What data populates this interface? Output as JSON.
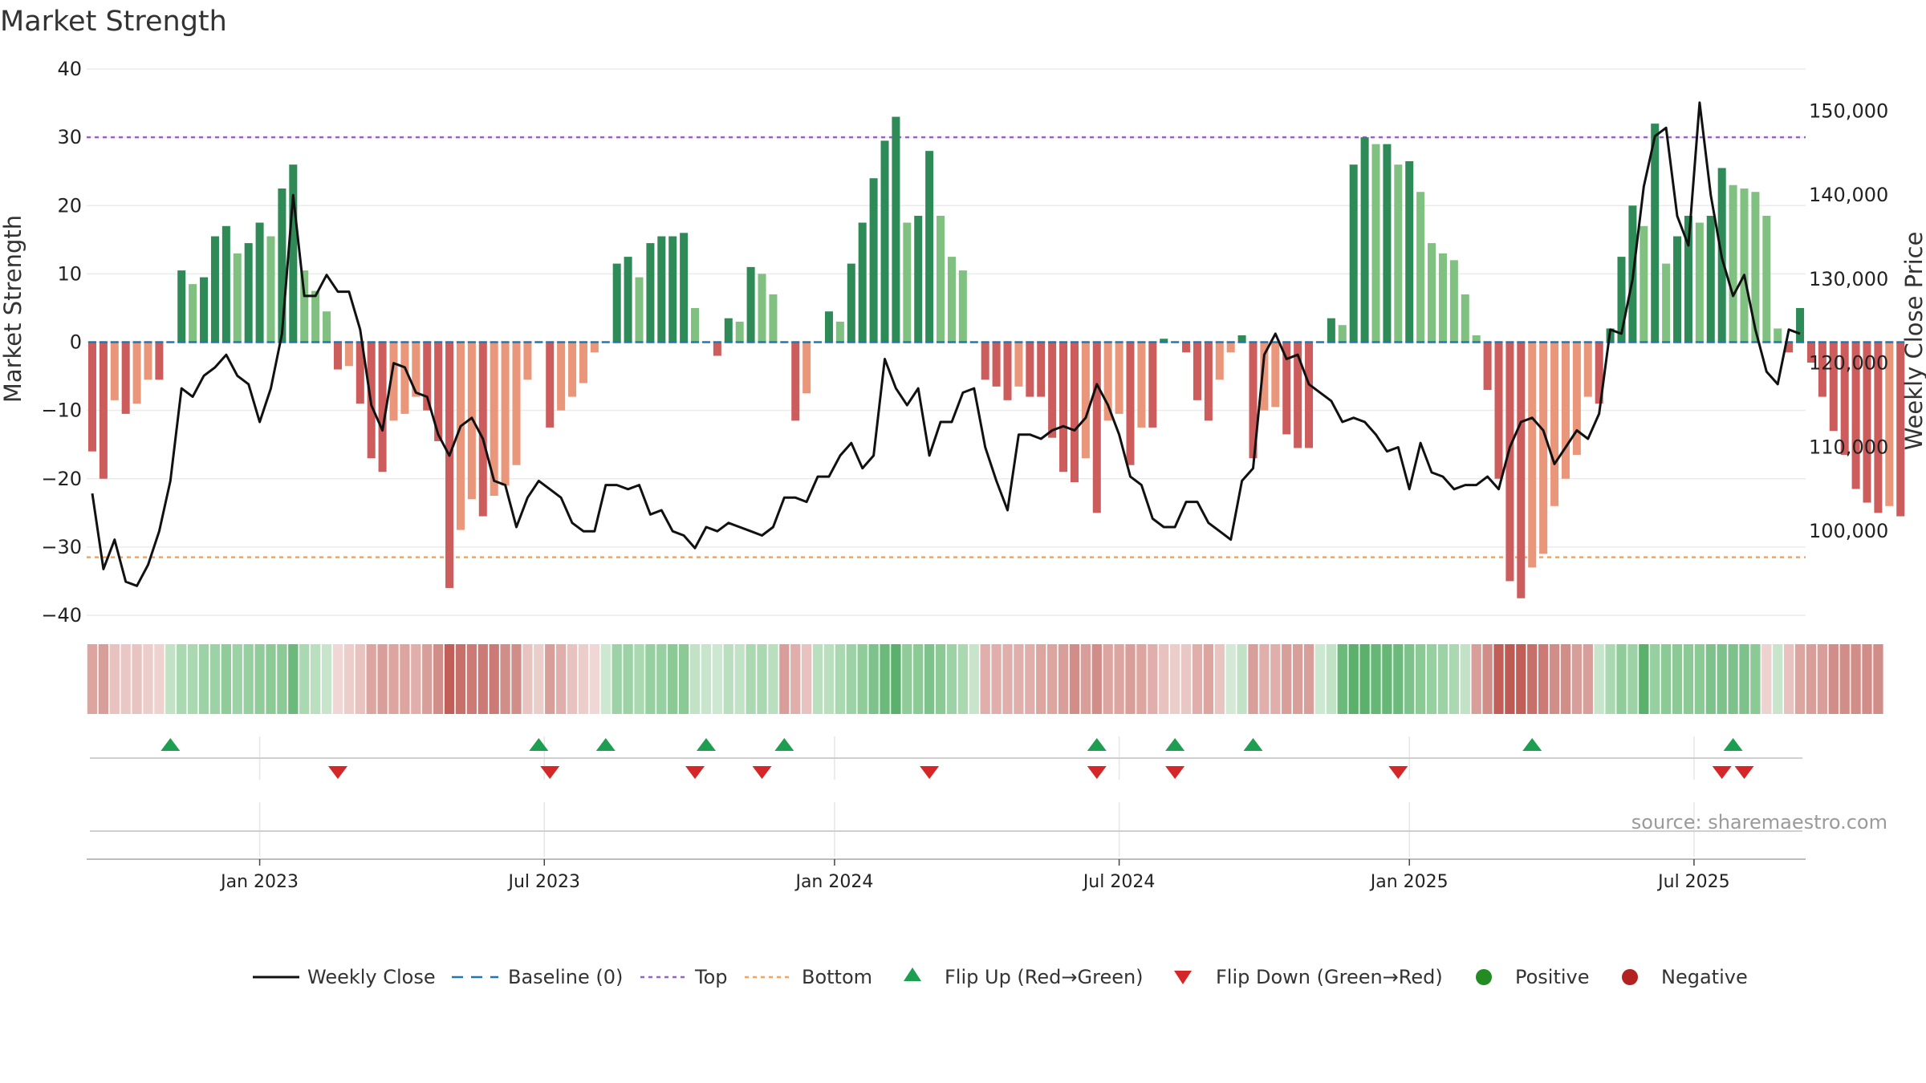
{
  "chart_data": {
    "type": "bar",
    "title": "Market Strength",
    "ylabel": "Market Strength",
    "y2label": "Weekly Close Price",
    "ylim": [
      -40,
      40
    ],
    "yticks": [
      40,
      30,
      20,
      10,
      0,
      -10,
      -20,
      -30,
      -40
    ],
    "ytick_labels": [
      "40",
      "30",
      "20",
      "10",
      "0",
      "−10",
      "−20",
      "−30",
      "−40"
    ],
    "y2lim": [
      90000,
      155000
    ],
    "y2ticks": [
      150000,
      140000,
      130000,
      120000,
      110000,
      100000
    ],
    "y2tick_labels": [
      "150,000",
      "140,000",
      "130,000",
      "120,000",
      "110,000",
      "100,000"
    ],
    "top_level": 30,
    "bottom_level": -31.5,
    "x_start_week": 0,
    "weeks": 154,
    "xticks": [
      {
        "label": "Jan 2023",
        "week": 15
      },
      {
        "label": "Jul 2023",
        "week": 40.5
      },
      {
        "label": "Jan 2024",
        "week": 66.5
      },
      {
        "label": "Jul 2024",
        "week": 92
      },
      {
        "label": "Jan 2025",
        "week": 118
      },
      {
        "label": "Jul 2025",
        "week": 143.5
      }
    ],
    "strength": [
      -16,
      -20,
      -8.5,
      -10.5,
      -9,
      -5.5,
      -5.5,
      0,
      10.5,
      8.5,
      9.5,
      15.5,
      17,
      13,
      14.5,
      17.5,
      15.5,
      22.5,
      26,
      10.5,
      7.5,
      4.5,
      -4,
      -3.5,
      -9,
      -17,
      -19,
      -11.5,
      -10.5,
      -8,
      -10,
      -14.5,
      -36,
      -27.5,
      -23,
      -25.5,
      -22.5,
      -21,
      -18,
      -5.5,
      0,
      -12.5,
      -10,
      -8,
      -6,
      -1.5,
      0,
      11.5,
      12.5,
      9.5,
      14.5,
      15.5,
      15.5,
      16,
      5,
      0,
      -2,
      3.5,
      3,
      11,
      10,
      7,
      0,
      -11.5,
      -7.5,
      0,
      4.5,
      3,
      11.5,
      17.5,
      24,
      29.5,
      33,
      17.5,
      18.5,
      28,
      18.5,
      12.5,
      10.5,
      0,
      -5.5,
      -6.5,
      -8.5,
      -6.5,
      -8,
      -8,
      -14,
      -19,
      -20.5,
      -17,
      -25,
      -11.5,
      -10.5,
      -18,
      -12.5,
      -12.5,
      0.5,
      0,
      -1.5,
      -8.5,
      -11.5,
      -5.5,
      -1.5,
      1,
      -17,
      -10,
      -9.5,
      -13.5,
      -15.5,
      -15.5,
      0,
      3.5,
      2.5,
      26,
      30,
      29,
      29,
      26,
      26.5,
      22,
      14.5,
      13,
      12,
      7,
      1,
      -7,
      -20,
      -35,
      -37.5,
      -33,
      -31,
      -24,
      -20,
      -16.5,
      -8,
      -9,
      2,
      12.5,
      20,
      17,
      32,
      11.5,
      15.5,
      18.5,
      17.5,
      18.5,
      25.5,
      23,
      22.5,
      22,
      18.5,
      2,
      -1.5,
      5,
      -3,
      -8,
      -13,
      -16.5,
      -21.5,
      -23.5,
      -25,
      -24,
      -25.5
    ],
    "close": [
      104500,
      95500,
      99000,
      94000,
      93500,
      96000,
      100000,
      106000,
      117000,
      116000,
      118500,
      119500,
      121000,
      118500,
      117500,
      113000,
      117000,
      123500,
      140000,
      128000,
      128000,
      130500,
      128500,
      128500,
      124000,
      115000,
      112000,
      120000,
      119500,
      116500,
      116000,
      111500,
      109000,
      112500,
      113500,
      111000,
      106000,
      105500,
      100500,
      104000,
      106000,
      105000,
      104000,
      101000,
      100000,
      100000,
      105500,
      105500,
      105000,
      105500,
      102000,
      102500,
      100000,
      99500,
      98000,
      100500,
      100000,
      101000,
      100500,
      100000,
      99500,
      100500,
      104000,
      104000,
      103500,
      106500,
      106500,
      109000,
      110500,
      107500,
      109000,
      120500,
      117000,
      115000,
      117000,
      109000,
      113000,
      113000,
      116500,
      117000,
      110000,
      106000,
      102500,
      111500,
      111500,
      111000,
      112000,
      112500,
      112000,
      113500,
      117500,
      115000,
      111500,
      106500,
      105500,
      101500,
      100500,
      100500,
      103500,
      103500,
      101000,
      100000,
      99000,
      106000,
      107500,
      121000,
      123500,
      120500,
      121000,
      117500,
      116500,
      115500,
      113000,
      113500,
      113000,
      111500,
      109500,
      110000,
      105000,
      110500,
      107000,
      106500,
      105000,
      105500,
      105500,
      106500,
      105000,
      110000,
      113000,
      113500,
      112000,
      108000,
      110000,
      112000,
      111000,
      114000,
      124000,
      123500,
      130000,
      141000,
      147000,
      148000,
      137500,
      134000,
      151000,
      140000,
      132500,
      128000,
      130500,
      124000,
      119000,
      117500,
      124000,
      123500
    ]
  },
  "heat_strip": {
    "colors": [
      "#DCA5A0",
      "#D89F9A",
      "#E7C2BF",
      "#E9C7C4",
      "#E8C4C0",
      "#EBCDCA",
      "#EDD2D0",
      "#C2E2C5",
      "#A9D8B1",
      "#A9D8B1",
      "#9CD2A6",
      "#9CD2A6",
      "#90CC9A",
      "#9CD2A6",
      "#96CFA0",
      "#90CC9A",
      "#8BC995",
      "#8BC995",
      "#6BBA7B",
      "#A9D8B1",
      "#B9DFBF",
      "#C8E5CC",
      "#F0D6D4",
      "#EBCDCA",
      "#E7C2BF",
      "#DCA5A0",
      "#D89F9A",
      "#DCA5A0",
      "#DCA5A0",
      "#E1AFAB",
      "#D89F9A",
      "#D18D88",
      "#C15E58",
      "#C7706A",
      "#CB7A75",
      "#CB7A75",
      "#CB7A75",
      "#D18D88",
      "#D18D88",
      "#E8C4C0",
      "#EBCDCA",
      "#D89F9A",
      "#E1AFAB",
      "#E7C2BF",
      "#EBCDCA",
      "#F0D6D4",
      "#CDE8D1",
      "#9CD2A6",
      "#9CD2A6",
      "#A9D8B1",
      "#96CFA0",
      "#96CFA0",
      "#8BC995",
      "#8BC995",
      "#C2E2C5",
      "#C8E5CC",
      "#CDE8D1",
      "#B9DFBF",
      "#C2E2C5",
      "#A9D8B1",
      "#A9D8B1",
      "#B9DFBF",
      "#D89F9A",
      "#E1AFAB",
      "#E7C2BF",
      "#B9DFBF",
      "#B9DFBF",
      "#A9D8B1",
      "#9CD2A6",
      "#90CC9A",
      "#7DC28A",
      "#6BBA7B",
      "#5BB06C",
      "#90CC9A",
      "#8BC995",
      "#7DC28A",
      "#8BC995",
      "#9CD2A6",
      "#A9D8B1",
      "#C8E5CC",
      "#E1AFAB",
      "#E1AFAB",
      "#E1AFAB",
      "#E1AFAB",
      "#E1AFAB",
      "#DCA5A0",
      "#DCA5A0",
      "#D89F9A",
      "#D18D88",
      "#D89F9A",
      "#D18D88",
      "#DCA5A0",
      "#DCA5A0",
      "#D89F9A",
      "#DCA5A0",
      "#E1AFAB",
      "#E7C2BF",
      "#EBCDCA",
      "#E9C7C4",
      "#E1AFAB",
      "#DCA5A0",
      "#E8C4C0",
      "#D3E9D5",
      "#C2E2C5",
      "#D89F9A",
      "#E1AFAB",
      "#E1AFAB",
      "#D89F9A",
      "#D89F9A",
      "#D89F9A",
      "#CDE8D1",
      "#C2E2C5",
      "#6BBA7B",
      "#5BB06C",
      "#5BB06C",
      "#66B776",
      "#66B776",
      "#6BBA7B",
      "#7DC28A",
      "#8BC995",
      "#96CFA0",
      "#9CD2A6",
      "#A9D8B1",
      "#C2E2C5",
      "#D89F9A",
      "#D18D88",
      "#C15E58",
      "#BE5A54",
      "#C15E58",
      "#C7706A",
      "#CB7A75",
      "#D18D88",
      "#D18D88",
      "#D89F9A",
      "#D89F9A",
      "#C8E5CC",
      "#A9D8B1",
      "#90CC9A",
      "#9CD2A6",
      "#5BB06C",
      "#96CFA0",
      "#8BC995",
      "#8BC995",
      "#8BC995",
      "#8BC995",
      "#7DC28A",
      "#7DC28A",
      "#7DC28A",
      "#7DC28A",
      "#8BC995",
      "#EDD2D0",
      "#C8E5CC",
      "#E7C2BF",
      "#DCA5A0",
      "#D89F9A",
      "#D89F9A",
      "#D18D88",
      "#D18D88",
      "#D18D88",
      "#D18D88",
      "#D18D88"
    ]
  },
  "flip_up_weeks": [
    7,
    40,
    46,
    55,
    62,
    90,
    97,
    104,
    129,
    147
  ],
  "flip_down_weeks": [
    22,
    41,
    54,
    60,
    75,
    90,
    97,
    117,
    146,
    148
  ],
  "legend": {
    "weekly_close": "Weekly Close",
    "baseline": "Baseline (0)",
    "top": "Top",
    "bottom": "Bottom",
    "flip_up": "Flip Up (Red→Green)",
    "flip_down": "Flip Down (Green→Red)",
    "positive": "Positive",
    "negative": "Negative"
  },
  "source": "source: sharemaestro.com",
  "colors": {
    "positive_strong": "#2E8B57",
    "positive_weak": "#80C080",
    "negative_strong": "#CD5C5C",
    "negative_weak": "#E9967A",
    "top_line": "#9467BD",
    "bottom_line": "#F4A460",
    "baseline": "#1F77B4",
    "close_line": "#111111",
    "flip_up": "#1E9E50",
    "flip_down": "#D62728",
    "positive_dot": "#228B22",
    "negative_dot": "#B22222"
  }
}
